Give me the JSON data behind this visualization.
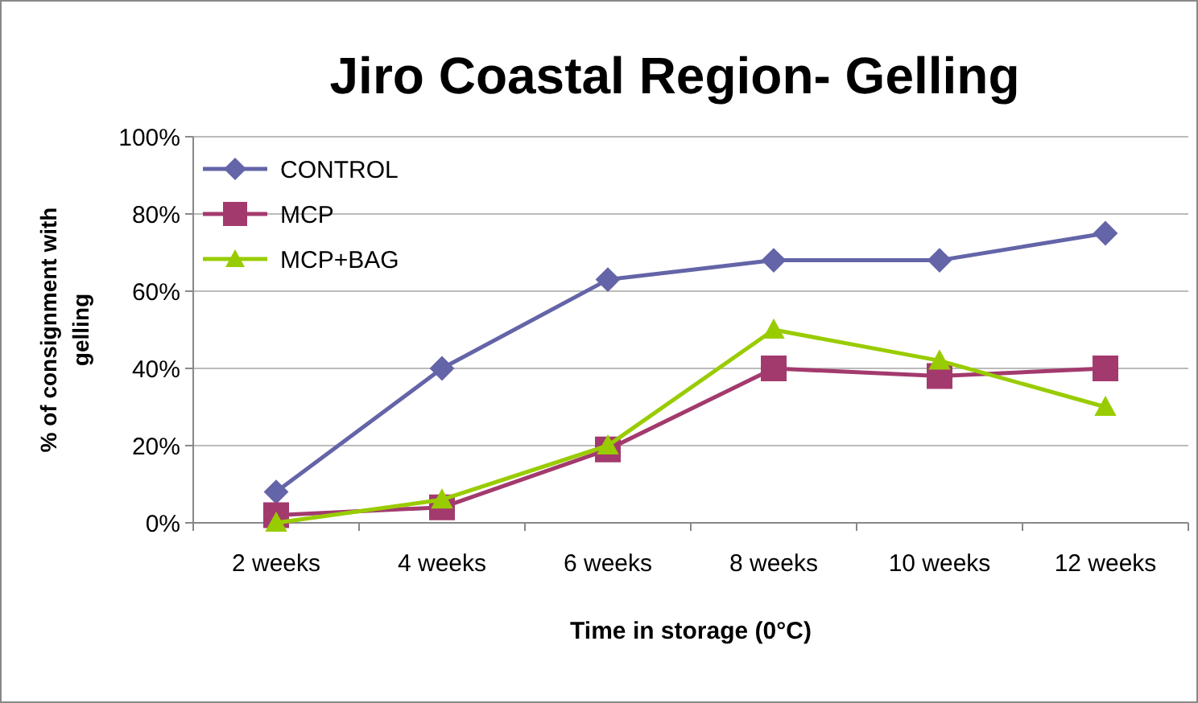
{
  "chart_data": {
    "type": "line",
    "title": "Jiro Coastal Region- Gelling",
    "xlabel": "Time in storage (0°C)",
    "ylabel": "% of consignment with gelling",
    "categories": [
      "2 weeks",
      "4 weeks",
      "6 weeks",
      "8 weeks",
      "10 weeks",
      "12 weeks"
    ],
    "series": [
      {
        "name": "CONTROL",
        "color": "#6464a8",
        "marker": "diamond",
        "values": [
          8,
          40,
          63,
          68,
          68,
          75
        ]
      },
      {
        "name": "MCP",
        "color": "#a33a6e",
        "marker": "square",
        "values": [
          2,
          4,
          19,
          40,
          38,
          40
        ]
      },
      {
        "name": "MCP+BAG",
        "color": "#99cc00",
        "marker": "triangle",
        "values": [
          0,
          6,
          20,
          50,
          42,
          30
        ]
      }
    ],
    "ylim": [
      0,
      100
    ],
    "yticks": [
      {
        "value": 0,
        "label": "0%"
      },
      {
        "value": 20,
        "label": "20%"
      },
      {
        "value": 40,
        "label": "40%"
      },
      {
        "value": 60,
        "label": "60%"
      },
      {
        "value": 80,
        "label": "80%"
      },
      {
        "value": 100,
        "label": "100%"
      }
    ],
    "grid": "y",
    "legend": "top left"
  }
}
